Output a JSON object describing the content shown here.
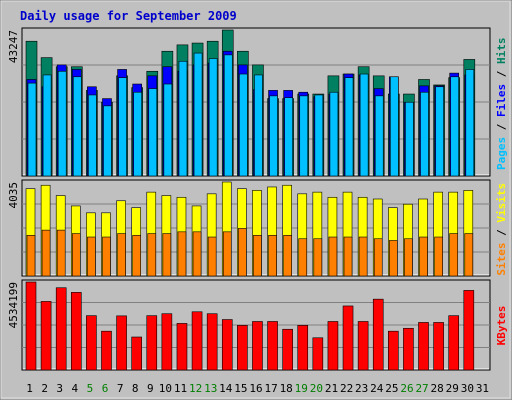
{
  "chart_data": {
    "type": "bar",
    "title": "Daily usage for September 2009",
    "categories": [
      "1",
      "2",
      "3",
      "4",
      "5",
      "6",
      "7",
      "8",
      "9",
      "10",
      "11",
      "12",
      "13",
      "14",
      "15",
      "16",
      "17",
      "18",
      "19",
      "20",
      "21",
      "22",
      "23",
      "24",
      "25",
      "26",
      "27",
      "28",
      "29",
      "30",
      "31"
    ],
    "weekend_days": [
      5,
      6,
      12,
      13,
      19,
      20,
      26,
      27
    ],
    "colors": {
      "background": "#c0c0c0",
      "frame": "#909090",
      "title": "#0000cc",
      "hits": "#008060",
      "files": "#0000ff",
      "pages": "#00c0ff",
      "visits": "#ffff00",
      "sites": "#ff8000",
      "kbytes": "#ff0000",
      "weekend_label": "#007f00",
      "weekday_label": "#000000"
    },
    "panels": [
      {
        "id": "hits-files-pages",
        "ymax_label": "43247",
        "ymax": 43247,
        "legend": [
          "Pages",
          "Files",
          "Hits"
        ],
        "series": [
          {
            "name": "Hits",
            "values": [
              39924,
              35067,
              32369,
              32369,
              25355,
              21848,
              29675,
              26172,
              31021,
              36955,
              38841,
              39379,
              39921,
              43247,
              36955,
              32909,
              22927,
              22927,
              24276,
              24276,
              29666,
              30205,
              32369,
              29662,
              24276,
              24276,
              28590,
              26969,
              29132,
              34526,
              0
            ]
          },
          {
            "name": "Files",
            "values": [
              28590,
              26436,
              32909,
              31560,
              26436,
              22927,
              31560,
              27244,
              29675,
              32369,
              31021,
              32909,
              33448,
              36955,
              32909,
              25624,
              25355,
              25355,
              24815,
              23467,
              24276,
              30205,
              29932,
              25893,
              29394,
              21848,
              26709,
              26709,
              30475,
              29932,
              0
            ]
          },
          {
            "name": "Pages",
            "values": [
              27513,
              29932,
              31021,
              29394,
              24006,
              20773,
              29123,
              24815,
              25893,
              27244,
              33987,
              36410,
              34795,
              35876,
              30205,
              29932,
              23736,
              23197,
              23736,
              24006,
              24815,
              29123,
              30205,
              23736,
              29394,
              21848,
              24815,
              26436,
              29394,
              31560,
              0
            ]
          }
        ]
      },
      {
        "id": "visits-sites",
        "ymax_label": "4035",
        "ymax": 4035,
        "legend": [
          "Sites",
          "Visits"
        ],
        "series": [
          {
            "name": "Visits",
            "values": [
              3749,
              3896,
              3453,
              3008,
              2712,
              2712,
              3230,
              2934,
              3600,
              3453,
              3379,
              3008,
              3527,
              4035,
              3749,
              3675,
              3822,
              3896,
              3527,
              3600,
              3379,
              3600,
              3379,
              3305,
              2934,
              3082,
              3305,
              3600,
              3600,
              3675,
              0
            ]
          },
          {
            "name": "Sites",
            "values": [
              1747,
              1969,
              1969,
              1821,
              1673,
              1673,
              1821,
              1747,
              1821,
              1821,
              1896,
              1896,
              1673,
              1896,
              2043,
              1747,
              1747,
              1747,
              1599,
              1599,
              1673,
              1673,
              1673,
              1599,
              1525,
              1599,
              1673,
              1673,
              1821,
              1821,
              0
            ]
          }
        ]
      },
      {
        "id": "kbytes",
        "ymax_label": "4534199",
        "ymax": 4534199,
        "legend": [
          "KBytes"
        ],
        "series": [
          {
            "name": "KBytes",
            "values": [
              4534199,
              3533076,
              4238400,
              4000000,
              2800000,
              2000000,
              2789000,
              1700000,
              2800000,
              2900000,
              2400000,
              3000000,
              2900000,
              2600000,
              2300000,
              2500000,
              2500000,
              2100000,
              2300000,
              1660000,
              2500000,
              3300000,
              2500000,
              3650000,
              2000000,
              2150000,
              2450000,
              2450000,
              2800000,
              4100000,
              0
            ]
          }
        ]
      }
    ]
  }
}
